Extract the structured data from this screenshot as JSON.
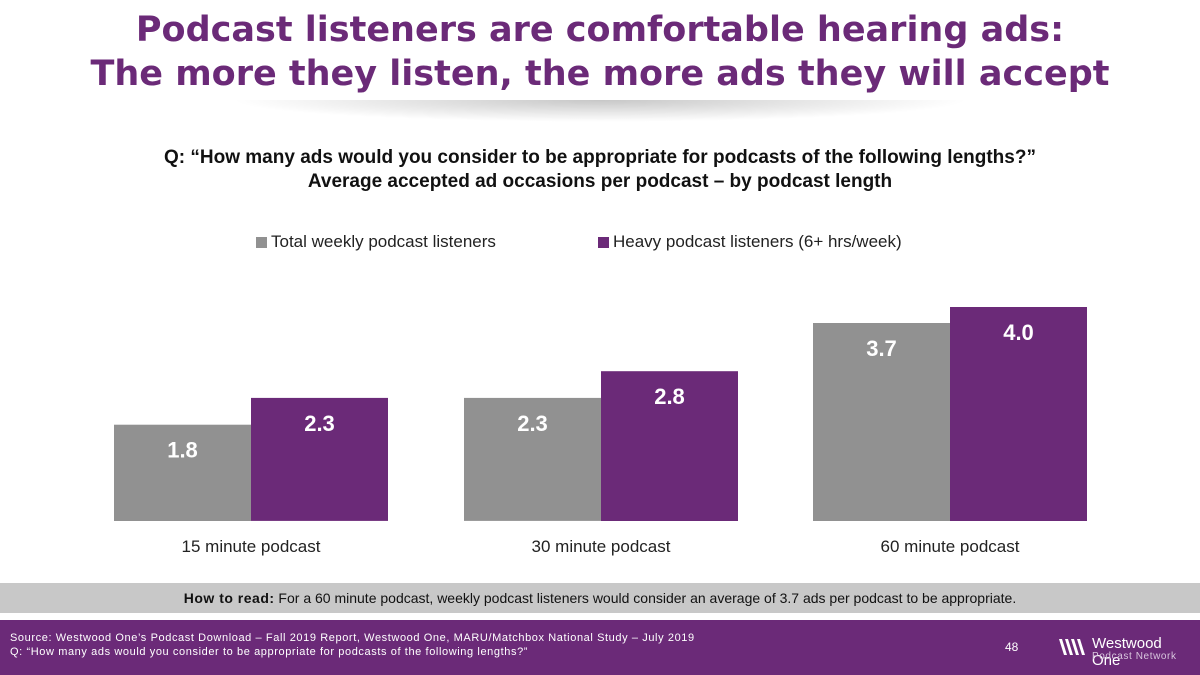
{
  "slide": {
    "title_line1": "Podcast listeners are comfortable hearing ads:",
    "title_line2": "The more they listen, the more ads they will accept",
    "question_line1": "Q: “How many ads would you consider to be appropriate for podcasts of the following lengths?”",
    "question_line2": "Average accepted ad occasions per podcast – by podcast length"
  },
  "legend": [
    {
      "label": "Total weekly podcast listeners",
      "color": "#919191"
    },
    {
      "label": "Heavy podcast listeners (6+ hrs/week)",
      "color": "#6b2a78"
    }
  ],
  "chart_data": {
    "type": "bar",
    "title": "Average accepted ad occasions per podcast – by podcast length",
    "categories": [
      "15 minute podcast",
      "30 minute podcast",
      "60 minute podcast"
    ],
    "series": [
      {
        "name": "Total weekly podcast listeners",
        "values": [
          1.8,
          2.3,
          3.7
        ],
        "labels": [
          "1.8",
          "2.3",
          "3.7"
        ],
        "color": "#919191"
      },
      {
        "name": "Heavy podcast listeners (6+ hrs/week)",
        "values": [
          2.3,
          2.8,
          4.0
        ],
        "labels": [
          "2.3",
          "2.8",
          "4.0"
        ],
        "color": "#6b2a78"
      }
    ],
    "xlabel": "",
    "ylabel": "",
    "ylim": [
      0,
      4.0
    ],
    "grid": false,
    "legend_position": "top"
  },
  "how_to_read": {
    "label": "How to read:",
    "text": " For a 60 minute podcast, weekly podcast listeners would consider an average of 3.7 ads per podcast to be appropriate."
  },
  "footer": {
    "source_line1": "Source: Westwood One’s Podcast Download – Fall 2019 Report, Westwood One, MARU/Matchbox National Study – July 2019",
    "source_line2": "Q: “How many ads would you consider to be appropriate for podcasts of the following lengths?”",
    "page_number": "48",
    "logo_name": "Westwood One",
    "logo_sub": "Podcast Network"
  }
}
